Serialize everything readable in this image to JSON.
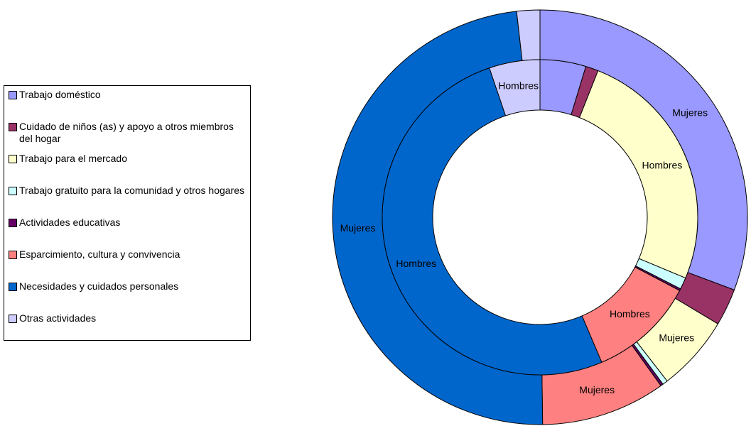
{
  "chart_data": {
    "type": "donut",
    "categories": [
      "Trabajo doméstico",
      "Cuidado de niños (as) y apoyo a otros miembros del hogar",
      "Trabajo para el mercado",
      "Trabajo gratuito para la comunidad y otros hogares",
      "Actividades educativas",
      "Esparcimiento, cultura y convivencia",
      "Necesidades y cuidados personales",
      "Otras actividades"
    ],
    "colors": [
      "#9999FF",
      "#993366",
      "#FFFFCC",
      "#CCFFFF",
      "#660066",
      "#FF8080",
      "#0066CC",
      "#CCCCFF"
    ],
    "series": [
      {
        "name": "Mujeres",
        "values": [
          30.7,
          2.9,
          5.9,
          0.4,
          0.2,
          9.7,
          48.4,
          1.8
        ],
        "labeled": [
          0,
          2,
          5,
          6
        ]
      },
      {
        "name": "Hombres",
        "values": [
          4.7,
          1.3,
          25.3,
          1.2,
          0.2,
          10.9,
          51.2,
          5.2
        ],
        "labeled": [
          2,
          5,
          6,
          7
        ]
      }
    ],
    "legend": "left"
  }
}
